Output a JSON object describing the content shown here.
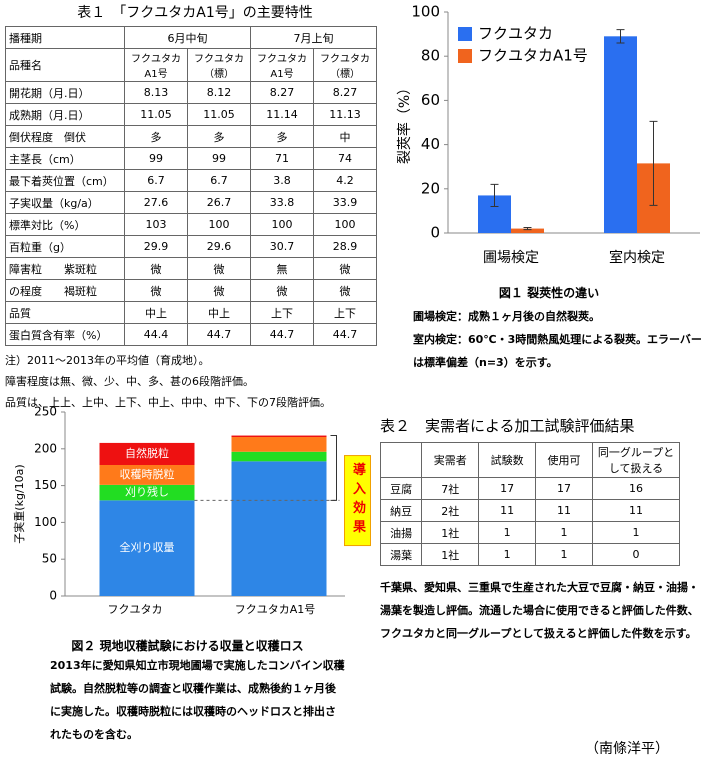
{
  "table1": {
    "title": "表１　「フクユタカA1号」の主要特性",
    "header": [
      "播種期",
      "6月中旬",
      "7月上旬"
    ],
    "varieties": [
      "品種名",
      "フクユタカA1号",
      "フクユタカ（標）",
      "フクユタカA1号",
      "フクユタカ（標）"
    ],
    "rows": [
      [
        "開花期（月.日）",
        "8.13",
        "8.12",
        "8.27",
        "8.27"
      ],
      [
        "成熟期（月.日）",
        "11.05",
        "11.05",
        "11.14",
        "11.13"
      ],
      [
        "倒伏程度　倒伏",
        "多",
        "多",
        "多",
        "中"
      ],
      [
        "主茎長（cm）",
        "99",
        "99",
        "71",
        "74"
      ],
      [
        "最下着莢位置（cm）",
        "6.7",
        "6.7",
        "3.8",
        "4.2"
      ],
      [
        "子実収量（kg/a）",
        "27.6",
        "26.7",
        "33.8",
        "33.9"
      ],
      [
        "標準対比（%）",
        "103",
        "100",
        "100",
        "100"
      ],
      [
        "百粒重（g）",
        "29.9",
        "29.6",
        "30.7",
        "28.9"
      ],
      [
        "障害粒　　紫斑粒",
        "微",
        "微",
        "無",
        "微"
      ],
      [
        "の程度　　褐斑粒",
        "微",
        "微",
        "微",
        "微"
      ],
      [
        "品質",
        "中上",
        "中上",
        "上下",
        "上下"
      ],
      [
        "蛋白質含有率（%）",
        "44.4",
        "44.7",
        "44.7",
        "44.7"
      ]
    ],
    "notes": [
      "注）2011～2013年の平均値（育成地）。",
      "障害程度は無、微、少、中、多、甚の6段階評価。",
      "品質は、上上、上中、上下、中上、中中、中下、下の7段階評価。"
    ]
  },
  "figure1": {
    "chart": {
      "type": "bar",
      "ylabel": "裂莢率（%）",
      "categories": [
        "圃場検定",
        "室内検定"
      ],
      "series": [
        {
          "name": "フクユタカ",
          "color": "#2a6ff0",
          "values": [
            17,
            89
          ],
          "errors": [
            5,
            3
          ]
        },
        {
          "name": "フクユタカA1号",
          "color": "#f0641e",
          "values": [
            2,
            31.5
          ],
          "errors": [
            0.5,
            19
          ]
        }
      ],
      "ylim": [
        0,
        100
      ],
      "yticks": [
        0,
        20,
        40,
        60,
        80,
        100
      ],
      "legend": "upper-left"
    },
    "caption": "図１ 裂莢性の違い",
    "notes": [
      "圃場検定：成熟１ヶ月後の自然裂莢。",
      "室内検定：60℃・3時間熱風処理による裂莢。エラーバーは標準偏差（n=3）を示す。"
    ]
  },
  "figure2": {
    "chart": {
      "type": "stacked-bar",
      "ylabel": "子実重(kg/10a)",
      "categories": [
        "フクユタカ",
        "フクユタカA1号"
      ],
      "series": [
        {
          "name": "全刈り収量",
          "color": "#2e86e6",
          "values": [
            130,
            183
          ]
        },
        {
          "name": "刈り残し",
          "color": "#22dd22",
          "values": [
            21,
            13
          ]
        },
        {
          "name": "収穫時脱粒",
          "color": "#ff7a1a",
          "values": [
            27,
            20
          ]
        },
        {
          "name": "自然脱粒",
          "color": "#ee1111",
          "values": [
            30,
            2
          ]
        }
      ],
      "ylim": [
        0,
        250
      ],
      "yticks": [
        0,
        50,
        100,
        150,
        200,
        250
      ],
      "annotation": "導入効果"
    },
    "caption": "図２ 現地収穫試験における収量と収穫ロス",
    "note": "2013年に愛知県知立市現地圃場で実施したコンバイン収穫試験。自然脱粒等の調査と収穫作業は、成熟後約１ヶ月後に実施した。収穫時脱粒には収穫時のヘッドロスと排出されたものを含む。"
  },
  "table2": {
    "title": "表２　実需者による加工試験評価結果",
    "header": [
      "",
      "実需者",
      "試験数",
      "使用可",
      "同一グループとして扱える"
    ],
    "rows": [
      [
        "豆腐",
        "7社",
        "17",
        "17",
        "16"
      ],
      [
        "納豆",
        "2社",
        "11",
        "11",
        "11"
      ],
      [
        "油揚",
        "1社",
        "1",
        "1",
        "1"
      ],
      [
        "湯葉",
        "1社",
        "1",
        "1",
        "0"
      ]
    ],
    "note": "千葉県、愛知県、三重県で生産された大豆で豆腐・納豆・油揚・湯葉を製造し評価。流通した場合に使用できると評価した件数、フクユタカと同一グループとして扱えると評価した件数を示す。"
  },
  "author": "（南條洋平）"
}
